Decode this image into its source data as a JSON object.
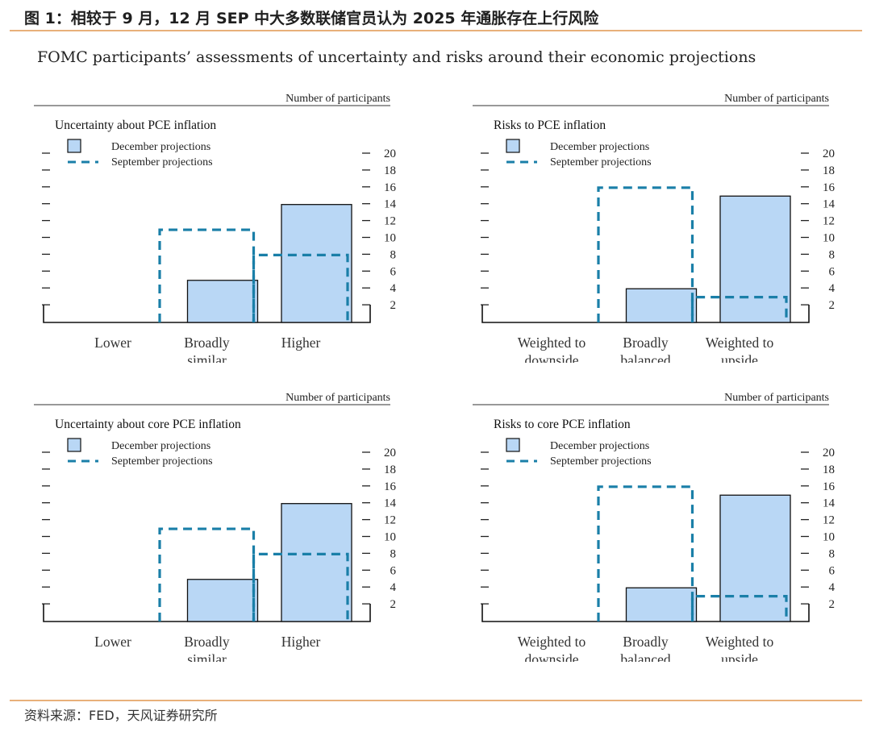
{
  "figure": {
    "header": "图 1：相较于 9 月，12 月 SEP 中大多数联储官员认为 2025 年通胀存在上行风险",
    "title": "FOMC participants’ assessments of uncertainty and risks around their economic projections",
    "source": "资料来源：FED，天风证券研究所"
  },
  "colors": {
    "december_fill": "#b9d7f5",
    "september_line": "#1a7fa8",
    "rule": "#e8b07a"
  },
  "chart_data": [
    {
      "type": "bar",
      "title": "Uncertainty about PCE inflation",
      "ylabel": "Number of participants",
      "categories": [
        "Lower",
        "Broadly similar",
        "Higher"
      ],
      "category_lines": [
        [
          "Lower"
        ],
        [
          "Broadly",
          "similar"
        ],
        [
          "Higher"
        ]
      ],
      "yticks": [
        2,
        4,
        6,
        8,
        10,
        12,
        14,
        16,
        18,
        20
      ],
      "ylim": [
        0,
        21
      ],
      "legend": [
        "December projections",
        "September projections"
      ],
      "legend_position": "top-left",
      "series": [
        {
          "name": "December projections",
          "style": "bar",
          "values": [
            0,
            5,
            14
          ]
        },
        {
          "name": "September projections",
          "style": "dashed-outline",
          "values": [
            0,
            11,
            8
          ]
        }
      ]
    },
    {
      "type": "bar",
      "title": "Risks to PCE inflation",
      "ylabel": "Number of participants",
      "categories": [
        "Weighted to downside",
        "Broadly balanced",
        "Weighted to upside"
      ],
      "category_lines": [
        [
          "Weighted to",
          "downside"
        ],
        [
          "Broadly",
          "balanced"
        ],
        [
          "Weighted to",
          "upside"
        ]
      ],
      "yticks": [
        2,
        4,
        6,
        8,
        10,
        12,
        14,
        16,
        18,
        20
      ],
      "ylim": [
        0,
        21
      ],
      "legend": [
        "December projections",
        "September projections"
      ],
      "legend_position": "top-left",
      "series": [
        {
          "name": "December projections",
          "style": "bar",
          "values": [
            0,
            4,
            15
          ]
        },
        {
          "name": "September projections",
          "style": "dashed-outline",
          "values": [
            0,
            16,
            3
          ]
        }
      ]
    },
    {
      "type": "bar",
      "title": "Uncertainty about core PCE inflation",
      "ylabel": "Number of participants",
      "categories": [
        "Lower",
        "Broadly similar",
        "Higher"
      ],
      "category_lines": [
        [
          "Lower"
        ],
        [
          "Broadly",
          "similar"
        ],
        [
          "Higher"
        ]
      ],
      "yticks": [
        2,
        4,
        6,
        8,
        10,
        12,
        14,
        16,
        18,
        20
      ],
      "ylim": [
        0,
        21
      ],
      "legend": [
        "December projections",
        "September projections"
      ],
      "legend_position": "top-left",
      "series": [
        {
          "name": "December projections",
          "style": "bar",
          "values": [
            0,
            5,
            14
          ]
        },
        {
          "name": "September projections",
          "style": "dashed-outline",
          "values": [
            0,
            11,
            8
          ]
        }
      ]
    },
    {
      "type": "bar",
      "title": "Risks to core PCE inflation",
      "ylabel": "Number of participants",
      "categories": [
        "Weighted to downside",
        "Broadly balanced",
        "Weighted to upside"
      ],
      "category_lines": [
        [
          "Weighted to",
          "downside"
        ],
        [
          "Broadly",
          "balanced"
        ],
        [
          "Weighted to",
          "upside"
        ]
      ],
      "yticks": [
        2,
        4,
        6,
        8,
        10,
        12,
        14,
        16,
        18,
        20
      ],
      "ylim": [
        0,
        21
      ],
      "legend": [
        "December projections",
        "September projections"
      ],
      "legend_position": "top-left",
      "series": [
        {
          "name": "December projections",
          "style": "bar",
          "values": [
            0,
            4,
            15
          ]
        },
        {
          "name": "September projections",
          "style": "dashed-outline",
          "values": [
            0,
            16,
            3
          ]
        }
      ]
    }
  ]
}
